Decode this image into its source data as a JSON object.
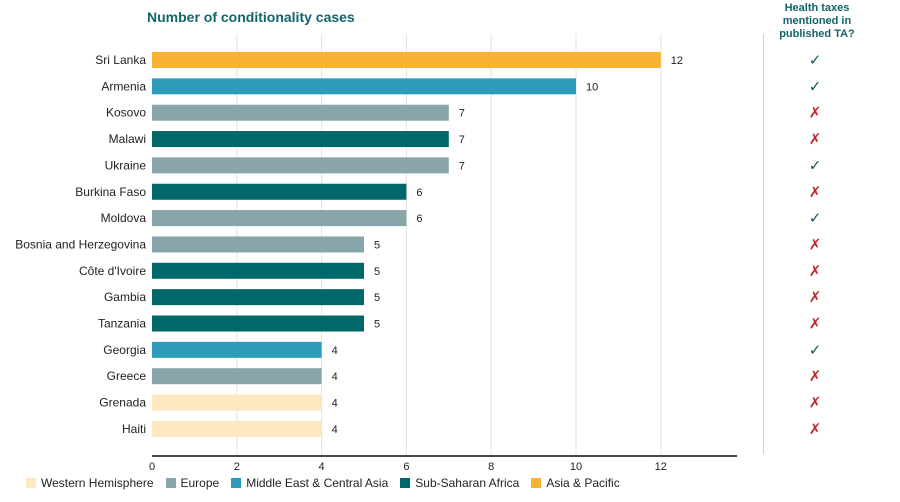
{
  "chart_data": {
    "type": "bar",
    "orientation": "horizontal",
    "title": "Number of conditionality cases",
    "categories": [
      "Sri Lanka",
      "Armenia",
      "Kosovo",
      "Malawi",
      "Ukraine",
      "Burkina Faso",
      "Moldova",
      "Bosnia and Herzegovina",
      "Côte d'Ivoire",
      "Gambia",
      "Tanzania",
      "Georgia",
      "Greece",
      "Grenada",
      "Haiti"
    ],
    "values": [
      12,
      10,
      7,
      7,
      7,
      6,
      6,
      5,
      5,
      5,
      5,
      4,
      4,
      4,
      4
    ],
    "regions": [
      "Asia & Pacific",
      "Middle East & Central Asia",
      "Europe",
      "Sub-Saharan Africa",
      "Europe",
      "Sub-Saharan Africa",
      "Europe",
      "Europe",
      "Sub-Saharan Africa",
      "Sub-Saharan Africa",
      "Sub-Saharan Africa",
      "Middle East & Central Asia",
      "Europe",
      "Western Hemisphere",
      "Western Hemisphere"
    ],
    "health_taxes_mentioned": [
      true,
      true,
      false,
      false,
      true,
      false,
      true,
      false,
      false,
      false,
      false,
      true,
      false,
      false,
      false
    ],
    "health_taxes_header": "Health taxes mentioned in published TA?",
    "xticks": [
      0,
      2,
      4,
      6,
      8,
      10,
      12
    ],
    "xlim": [
      0,
      13.8
    ],
    "grid": true,
    "legend_position": "bottom",
    "legend": [
      {
        "name": "Western Hemisphere",
        "color": "#fde8c2"
      },
      {
        "name": "Europe",
        "color": "#87a5ab"
      },
      {
        "name": "Middle East & Central Asia",
        "color": "#2e9bba"
      },
      {
        "name": "Sub-Saharan Africa",
        "color": "#00676a"
      },
      {
        "name": "Asia & Pacific",
        "color": "#f9b233"
      }
    ],
    "check_color": "#12565c",
    "cross_color": "#c1272d"
  }
}
